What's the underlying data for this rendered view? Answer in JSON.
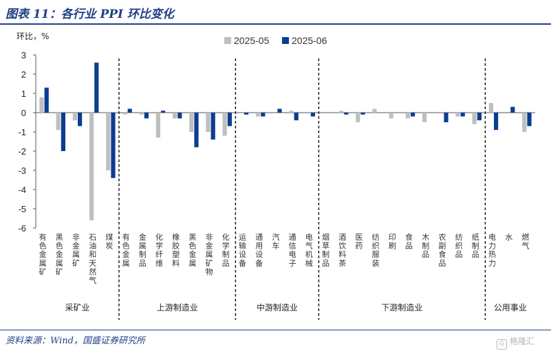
{
  "figure": {
    "title": "图表 11：各行业 PPI 环比变化",
    "source": "资料来源：Wind，国盛证券研究所",
    "watermark": "格隆汇"
  },
  "colors": {
    "s1": "#bfbfbf",
    "s2": "#0b3d91"
  },
  "chart_data": {
    "type": "bar",
    "ylabel": "环比，%",
    "ylim": [
      -6,
      3
    ],
    "yticks": [
      3,
      2,
      1,
      0,
      -1,
      -2,
      -3,
      -4,
      -5,
      -6
    ],
    "legend_position": "top-center",
    "grid": false,
    "categories": [
      "有色金属矿",
      "黑色金属矿",
      "非金属矿",
      "石油和天然气",
      "煤炭",
      "有色金属",
      "金属制品",
      "化学纤维",
      "橡胶塑料",
      "黑色金属",
      "非金属矿物",
      "化学制品",
      "运输设备",
      "通用设备",
      "汽车",
      "通信电子",
      "电气机械",
      "烟草制品",
      "酒饮料茶",
      "医药",
      "纺织服装",
      "印刷",
      "食品",
      "木制品",
      "农副食品",
      "纺织品",
      "纸制品",
      "电力热力",
      "水",
      "燃气"
    ],
    "series": [
      {
        "name": "2025-05",
        "values": [
          0.8,
          -0.9,
          -0.4,
          -5.6,
          -3.0,
          -0.1,
          -0.1,
          -1.3,
          -0.3,
          -1.0,
          -1.0,
          -1.2,
          0.0,
          -0.2,
          0.0,
          0.1,
          0.0,
          0.0,
          0.1,
          -0.5,
          0.2,
          -0.3,
          -0.3,
          -0.5,
          0.0,
          -0.2,
          -0.6,
          0.5,
          0.0,
          -1.0
        ]
      },
      {
        "name": "2025-06",
        "values": [
          1.3,
          -2.0,
          -0.7,
          2.6,
          -3.4,
          0.2,
          -0.3,
          0.1,
          -0.3,
          -1.8,
          -1.4,
          -0.7,
          -0.1,
          -0.2,
          0.2,
          -0.4,
          -0.2,
          0.0,
          -0.1,
          -0.1,
          0.0,
          0.0,
          -0.2,
          0.0,
          -0.5,
          -0.2,
          -0.4,
          -0.9,
          0.3,
          -0.7
        ]
      }
    ],
    "groups": [
      {
        "label": "采矿业",
        "start": 0,
        "end": 4
      },
      {
        "label": "上游制造业",
        "start": 5,
        "end": 11
      },
      {
        "label": "中游制造业",
        "start": 12,
        "end": 16
      },
      {
        "label": "下游制造业",
        "start": 17,
        "end": 26
      },
      {
        "label": "公用事业",
        "start": 27,
        "end": 29
      }
    ]
  }
}
